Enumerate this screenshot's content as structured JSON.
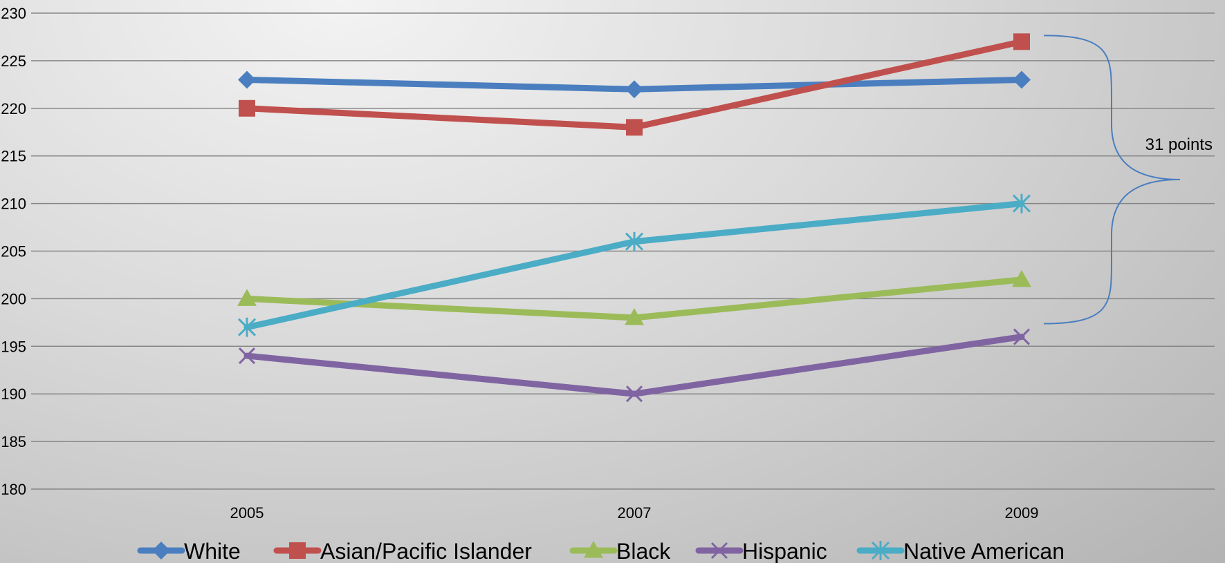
{
  "chart_data": {
    "type": "line",
    "x": [
      "2005",
      "2007",
      "2009"
    ],
    "ylim": [
      180,
      230
    ],
    "yticks": [
      180,
      185,
      190,
      195,
      200,
      205,
      210,
      215,
      220,
      225,
      230
    ],
    "grid": true,
    "legend_position": "bottom",
    "title": "",
    "xlabel": "",
    "ylabel": "",
    "series": [
      {
        "name": "White",
        "values": [
          223,
          222,
          223
        ],
        "color": "#4a7ebf",
        "marker": "diamond"
      },
      {
        "name": "Asian/Pacific Islander",
        "values": [
          220,
          218,
          227
        ],
        "color": "#c0504d",
        "marker": "square"
      },
      {
        "name": "Black",
        "values": [
          200,
          198,
          202
        ],
        "color": "#9bbb59",
        "marker": "triangle"
      },
      {
        "name": "Hispanic",
        "values": [
          194,
          190,
          196
        ],
        "color": "#8064a2",
        "marker": "x"
      },
      {
        "name": "Native American",
        "values": [
          197,
          206,
          210
        ],
        "color": "#4bacc6",
        "marker": "star"
      }
    ],
    "annotations": [
      {
        "text": "31 points",
        "type": "brace",
        "from": 227,
        "to": 196,
        "color": "#4a7ebf"
      }
    ]
  }
}
